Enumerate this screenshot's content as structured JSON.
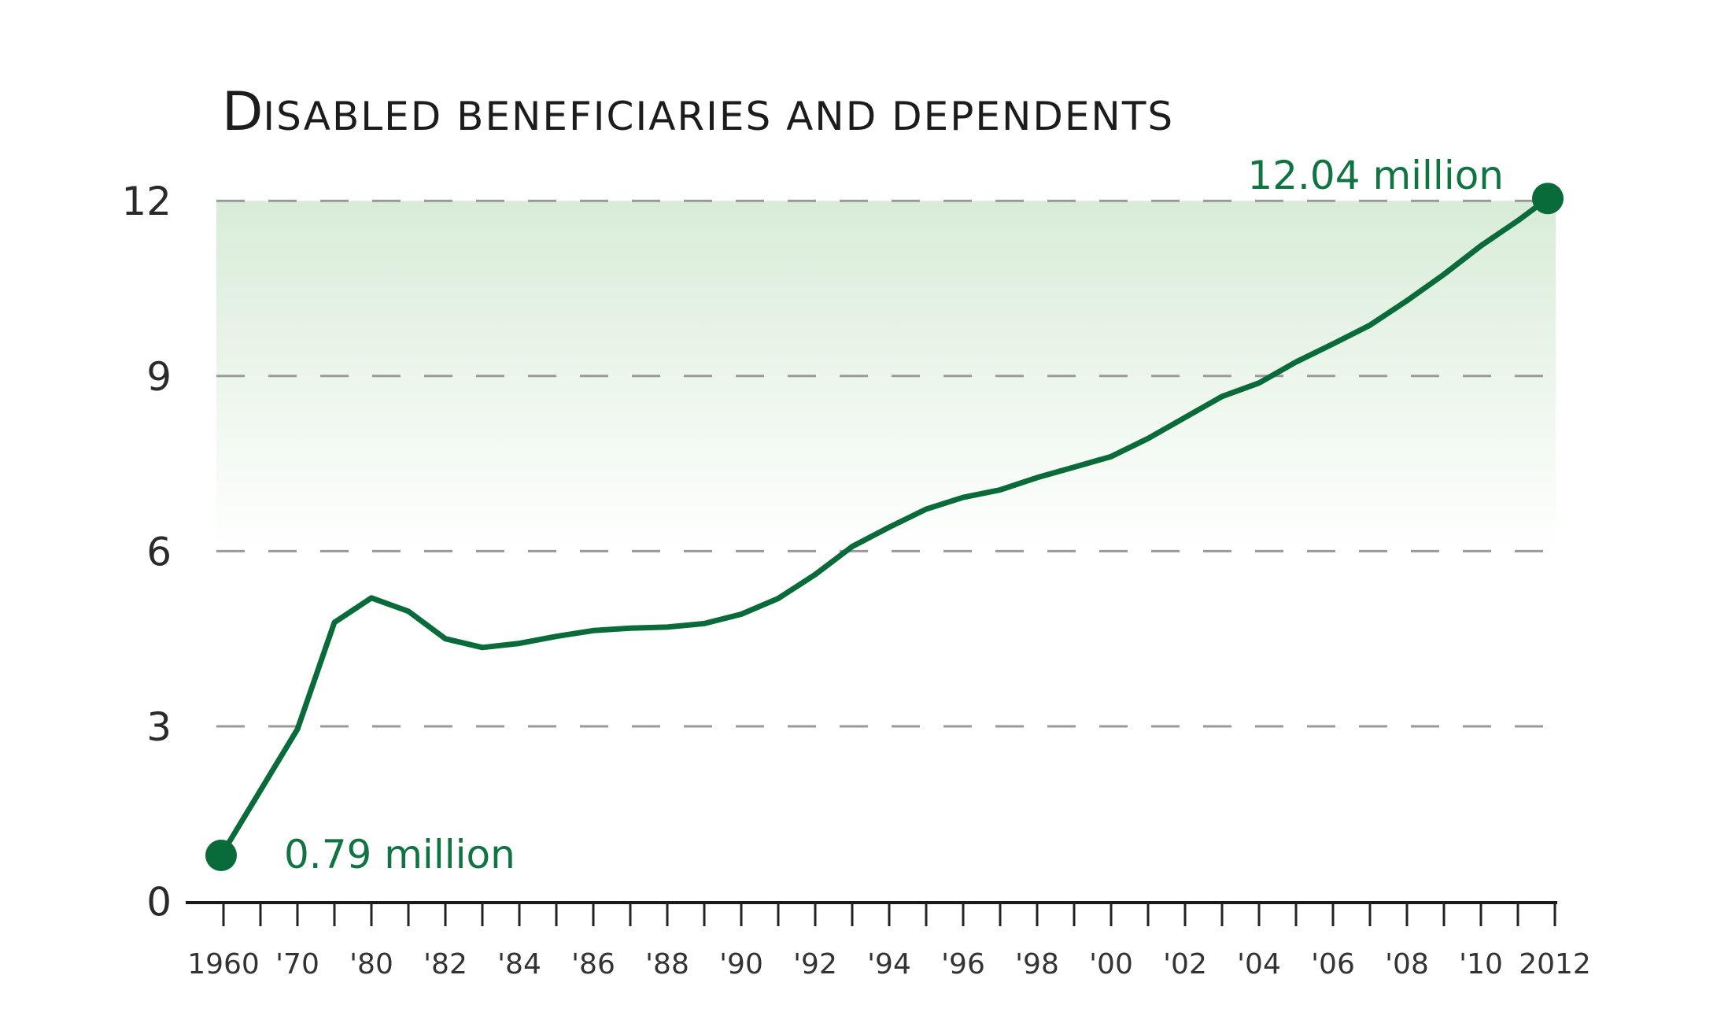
{
  "chart_data": {
    "type": "line",
    "title": "Disabled beneficiaries and dependents",
    "title_first_letter": "D",
    "title_rest": "isabled beneficiaries and dependents",
    "xlabel": "",
    "ylabel": "",
    "ylim": [
      0,
      12
    ],
    "yticks": [
      0,
      3,
      6,
      9,
      12
    ],
    "ytick_labels": [
      "0",
      "3",
      "6",
      "9",
      "12"
    ],
    "grid": "horizontal dashed at 3, 6, 9, 12",
    "x_ticks": [
      1960,
      1965,
      1970,
      1975,
      1980,
      1981,
      1982,
      1983,
      1984,
      1985,
      1986,
      1987,
      1988,
      1989,
      1990,
      1991,
      1992,
      1993,
      1994,
      1995,
      1996,
      1997,
      1998,
      1999,
      2000,
      2001,
      2002,
      2003,
      2004,
      2005,
      2006,
      2007,
      2008,
      2009,
      2010,
      2011,
      2012
    ],
    "x_tick_labels": [
      {
        "x": 1960,
        "label": "1960"
      },
      {
        "x": 1970,
        "label": "'70"
      },
      {
        "x": 1980,
        "label": "'80"
      },
      {
        "x": 1982,
        "label": "'82"
      },
      {
        "x": 1984,
        "label": "'84"
      },
      {
        "x": 1986,
        "label": "'86"
      },
      {
        "x": 1988,
        "label": "'88"
      },
      {
        "x": 1990,
        "label": "'90"
      },
      {
        "x": 1992,
        "label": "'92"
      },
      {
        "x": 1994,
        "label": "'94"
      },
      {
        "x": 1996,
        "label": "'96"
      },
      {
        "x": 1998,
        "label": "'98"
      },
      {
        "x": 2000,
        "label": "'00"
      },
      {
        "x": 2002,
        "label": "'02"
      },
      {
        "x": 2004,
        "label": "'04"
      },
      {
        "x": 2006,
        "label": "'06"
      },
      {
        "x": 2008,
        "label": "'08"
      },
      {
        "x": 2010,
        "label": "'10"
      },
      {
        "x": 2012,
        "label": "2012"
      }
    ],
    "series": [
      {
        "name": "Disabled beneficiaries and dependents (millions)",
        "x": [
          1960,
          1970,
          1975,
          1980,
          1981,
          1982,
          1983,
          1984,
          1985,
          1986,
          1987,
          1988,
          1989,
          1990,
          1991,
          1992,
          1993,
          1994,
          1995,
          1996,
          1997,
          1998,
          1999,
          2000,
          2001,
          2002,
          2003,
          2004,
          2005,
          2006,
          2007,
          2008,
          2009,
          2010,
          2011,
          2012
        ],
        "values": [
          0.79,
          2.95,
          4.78,
          5.2,
          4.97,
          4.5,
          4.35,
          4.42,
          4.54,
          4.64,
          4.68,
          4.7,
          4.76,
          4.92,
          5.19,
          5.6,
          6.08,
          6.41,
          6.72,
          6.92,
          7.05,
          7.26,
          7.44,
          7.62,
          7.93,
          8.29,
          8.65,
          8.88,
          9.24,
          9.55,
          9.87,
          10.29,
          10.74,
          11.23,
          11.66,
          12.04
        ],
        "color": "#0a6b3a"
      }
    ],
    "annotations": [
      {
        "x": 1960,
        "y": 0.79,
        "text": "0.79 million",
        "color": "#0f7342"
      },
      {
        "x": 2012,
        "y": 12.04,
        "text": "12.04 million",
        "color": "#0f7342"
      }
    ],
    "shaded_band": {
      "from": 6,
      "to": 12,
      "color_top": "#d8ecd8",
      "color_bottom": "#ffffff"
    },
    "line_color": "#0a6b3a",
    "grid_color": "#9a9a9a",
    "axis_color": "#1a1a1a"
  }
}
